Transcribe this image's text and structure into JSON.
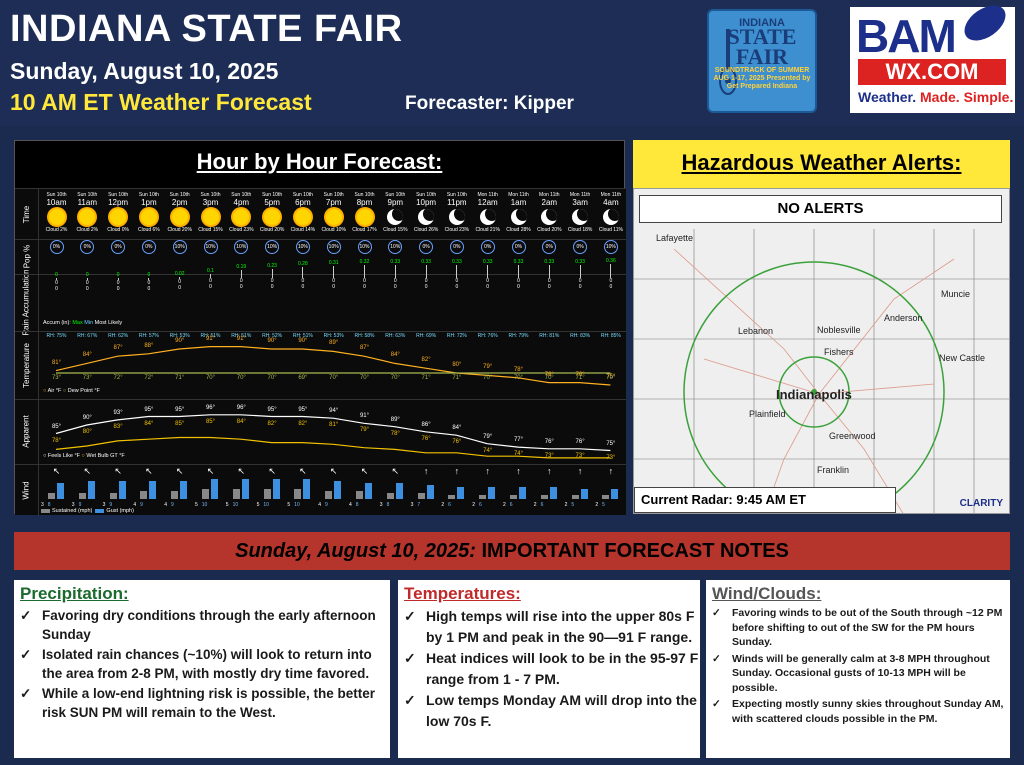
{
  "header": {
    "title": "INDIANA STATE FAIR",
    "date": "Sunday, August 10, 2025",
    "forecast_label": "10 AM ET Weather Forecast",
    "forecaster": "Forecaster: Kipper",
    "fair_logo": {
      "line1": "INDIANA",
      "line2": "STATE FAIR",
      "line3": "SOUNDTRACK OF SUMMER AUG 1-17, 2025 Presented by Get Prepared Indiana"
    },
    "basm_logo": {
      "top": "BAM",
      "mid": "WX.COM",
      "tag1": "Weather.",
      "tag2": "Made. Simple."
    }
  },
  "hourly": {
    "title": "Hour by Hour Forecast:",
    "row_labels": {
      "time": "Time",
      "pop": "Pop %",
      "rain": "Rain Accumulation",
      "temp": "Temperature",
      "apparent": "Apparent",
      "wind": "Wind"
    },
    "hours": [
      {
        "day": "Sun 10th",
        "hour": "10am",
        "icon": "sun",
        "cloud": "Cloud 2%",
        "pop": "0%",
        "rain": "0",
        "rh": "RH: 75%",
        "air": "81°",
        "dew": "73°",
        "feels": "85°",
        "wb": "78°",
        "arrow": "↖",
        "sus": 3,
        "gust": 8
      },
      {
        "day": "Sun 10th",
        "hour": "11am",
        "icon": "sun",
        "cloud": "Cloud 2%",
        "pop": "0%",
        "rain": "0",
        "rh": "RH: 67%",
        "air": "84°",
        "dew": "73°",
        "feels": "90°",
        "wb": "80°",
        "arrow": "↖",
        "sus": 3,
        "gust": 9
      },
      {
        "day": "Sun 10th",
        "hour": "12pm",
        "icon": "sun",
        "cloud": "Cloud 0%",
        "pop": "0%",
        "rain": "0",
        "rh": "RH: 62%",
        "air": "87°",
        "dew": "72°",
        "feels": "93°",
        "wb": "83°",
        "arrow": "↖",
        "sus": 3,
        "gust": 9
      },
      {
        "day": "Sun 10th",
        "hour": "1pm",
        "icon": "sun",
        "cloud": "Cloud 6%",
        "pop": "0%",
        "rain": "0",
        "rh": "RH: 57%",
        "air": "88°",
        "dew": "72°",
        "feels": "95°",
        "wb": "84°",
        "arrow": "↖",
        "sus": 4,
        "gust": 9
      },
      {
        "day": "Sun 10th",
        "hour": "2pm",
        "icon": "sun",
        "cloud": "Cloud 20%",
        "pop": "10%",
        "rain": "0.02",
        "rh": "RH: 53%",
        "air": "90°",
        "dew": "71°",
        "feels": "95°",
        "wb": "85°",
        "arrow": "↖",
        "sus": 4,
        "gust": 9
      },
      {
        "day": "Sun 10th",
        "hour": "3pm",
        "icon": "sun",
        "cloud": "Cloud 15%",
        "pop": "10%",
        "rain": "0.1",
        "rh": "RH: 51%",
        "air": "91°",
        "dew": "70°",
        "feels": "96°",
        "wb": "85°",
        "arrow": "↖",
        "sus": 5,
        "gust": 10
      },
      {
        "day": "Sun 10th",
        "hour": "4pm",
        "icon": "sun",
        "cloud": "Cloud 23%",
        "pop": "10%",
        "rain": "0.19",
        "rh": "RH: 51%",
        "air": "91°",
        "dew": "70°",
        "feels": "96°",
        "wb": "84°",
        "arrow": "↖",
        "sus": 5,
        "gust": 10
      },
      {
        "day": "Sun 10th",
        "hour": "5pm",
        "icon": "sun",
        "cloud": "Cloud 20%",
        "pop": "10%",
        "rain": "0.23",
        "rh": "RH: 52%",
        "air": "90°",
        "dew": "70°",
        "feels": "95°",
        "wb": "82°",
        "arrow": "↖",
        "sus": 5,
        "gust": 10
      },
      {
        "day": "Sun 10th",
        "hour": "6pm",
        "icon": "sun",
        "cloud": "Cloud 14%",
        "pop": "10%",
        "rain": "0.28",
        "rh": "RH: 51%",
        "air": "90°",
        "dew": "69°",
        "feels": "95°",
        "wb": "82°",
        "arrow": "↖",
        "sus": 5,
        "gust": 10
      },
      {
        "day": "Sun 10th",
        "hour": "7pm",
        "icon": "sun",
        "cloud": "Cloud 10%",
        "pop": "10%",
        "rain": "0.31",
        "rh": "RH: 53%",
        "air": "89°",
        "dew": "70°",
        "feels": "94°",
        "wb": "81°",
        "arrow": "↖",
        "sus": 4,
        "gust": 9
      },
      {
        "day": "Sun 10th",
        "hour": "8pm",
        "icon": "sun",
        "cloud": "Cloud 17%",
        "pop": "10%",
        "rain": "0.32",
        "rh": "RH: 58%",
        "air": "87°",
        "dew": "70°",
        "feels": "91°",
        "wb": "79°",
        "arrow": "↖",
        "sus": 4,
        "gust": 8
      },
      {
        "day": "Sun 10th",
        "hour": "9pm",
        "icon": "moon",
        "cloud": "Cloud 15%",
        "pop": "10%",
        "rain": "0.33",
        "rh": "RH: 63%",
        "air": "84°",
        "dew": "70°",
        "feels": "89°",
        "wb": "78°",
        "arrow": "↖",
        "sus": 3,
        "gust": 8
      },
      {
        "day": "Sun 10th",
        "hour": "10pm",
        "icon": "moon",
        "cloud": "Cloud 26%",
        "pop": "0%",
        "rain": "0.33",
        "rh": "RH: 69%",
        "air": "82°",
        "dew": "71°",
        "feels": "86°",
        "wb": "76°",
        "arrow": "↑",
        "sus": 3,
        "gust": 7
      },
      {
        "day": "Sun 10th",
        "hour": "11pm",
        "icon": "moon",
        "cloud": "Cloud 23%",
        "pop": "0%",
        "rain": "0.33",
        "rh": "RH: 72%",
        "air": "80°",
        "dew": "71°",
        "feels": "84°",
        "wb": "76°",
        "arrow": "↑",
        "sus": 2,
        "gust": 6
      },
      {
        "day": "Mon 11th",
        "hour": "12am",
        "icon": "moon",
        "cloud": "Cloud 21%",
        "pop": "0%",
        "rain": "0.33",
        "rh": "RH: 76%",
        "air": "79°",
        "dew": "70°",
        "feels": "79°",
        "wb": "74°",
        "arrow": "↑",
        "sus": 2,
        "gust": 6
      },
      {
        "day": "Mon 11th",
        "hour": "1am",
        "icon": "moon",
        "cloud": "Cloud 28%",
        "pop": "0%",
        "rain": "0.33",
        "rh": "RH: 79%",
        "air": "78°",
        "dew": "70°",
        "feels": "77°",
        "wb": "74°",
        "arrow": "↑",
        "sus": 2,
        "gust": 6
      },
      {
        "day": "Mon 11th",
        "hour": "2am",
        "icon": "moon",
        "cloud": "Cloud 20%",
        "pop": "0%",
        "rain": "0.33",
        "rh": "RH: 81%",
        "air": "76°",
        "dew": "70°",
        "feels": "76°",
        "wb": "73°",
        "arrow": "↑",
        "sus": 2,
        "gust": 6
      },
      {
        "day": "Mon 11th",
        "hour": "3am",
        "icon": "moon",
        "cloud": "Cloud 18%",
        "pop": "0%",
        "rain": "0.33",
        "rh": "RH: 83%",
        "air": "76°",
        "dew": "71°",
        "feels": "76°",
        "wb": "73°",
        "arrow": "↑",
        "sus": 2,
        "gust": 5
      },
      {
        "day": "Mon 11th",
        "hour": "4am",
        "icon": "moon",
        "cloud": "Cloud 11%",
        "pop": "10%",
        "rain": "0.36",
        "rh": "RH: 85%",
        "air": "75°",
        "dew": "70°",
        "feels": "75°",
        "wb": "73°",
        "arrow": "↑",
        "sus": 2,
        "gust": 5
      }
    ],
    "legend_rain": {
      "accum": "Accum (in):",
      "max": "Max",
      "min": "Min",
      "likely": "Most Likely"
    },
    "legend_temp": {
      "air": "Air °F",
      "dew": "Dew Point °F"
    },
    "legend_app": {
      "feels": "Feels Like °F",
      "wb": "Wet Bulb GT °F"
    },
    "legend_wind": {
      "sus": "Sustained (mph)",
      "gust": "Gust (mph)"
    }
  },
  "alerts": {
    "title": "Hazardous Weather Alerts:",
    "status": "NO ALERTS",
    "radar": "Current Radar: 9:45 AM ET",
    "clarity": "CLARITY",
    "cities": [
      "Lafayette",
      "Muncie",
      "Anderson",
      "Noblesville",
      "Lebanon",
      "Fishers",
      "New Castle",
      "Indianapolis",
      "Plainfield",
      "Greenwood",
      "Franklin"
    ]
  },
  "notes": {
    "banner_date": "Sunday, August 10, 2025:",
    "banner_rest": " IMPORTANT FORECAST NOTES",
    "precip": {
      "title": "Precipitation:",
      "items": [
        "Favoring dry conditions through the early afternoon Sunday",
        "Isolated rain chances (~10%) will look to return into the area from 2-8 PM, with mostly dry time favored.",
        "While a low-end lightning risk is possible, the better risk SUN PM will remain to the West."
      ]
    },
    "temps": {
      "title": "Temperatures:",
      "items": [
        "High temps will rise into the upper 80s F by 1 PM and peak in the 90—91 F range.",
        "Heat indices will look to be in the 95-97 F range from 1 - 7 PM.",
        "Low temps Monday AM will drop into the low 70s F."
      ]
    },
    "wind": {
      "title": "Wind/Clouds:",
      "items": [
        "Favoring winds to be out of the South through ~12 PM before shifting to out of the SW for the PM hours Sunday.",
        "Winds will be generally calm at 3-8 MPH throughout Sunday. Occasional gusts of 10-13 MPH will be possible.",
        "Expecting mostly sunny skies throughout Sunday AM, with scattered clouds possible in the PM."
      ]
    }
  }
}
